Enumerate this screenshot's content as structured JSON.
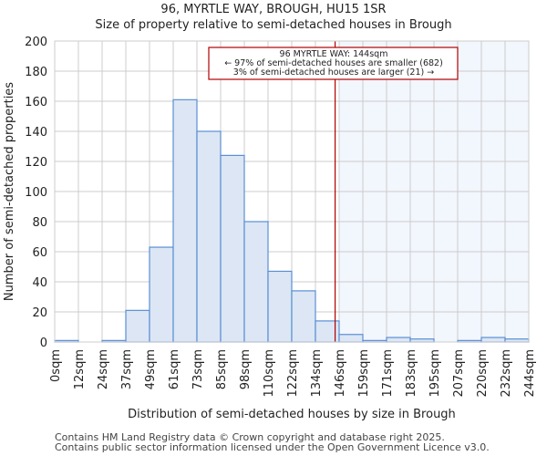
{
  "chart_data": {
    "type": "bar",
    "title": "96, MYRTLE WAY, BROUGH, HU15 1SR",
    "subtitle": "Size of property relative to semi-detached houses in Brough",
    "xlabel": "Distribution of semi-detached houses by size in Brough",
    "ylabel": "Number of semi-detached properties",
    "ylim": [
      0,
      200
    ],
    "yticks": [
      0,
      20,
      40,
      60,
      80,
      100,
      120,
      140,
      160,
      180,
      200
    ],
    "xticks": [
      "0sqm",
      "12sqm",
      "24sqm",
      "37sqm",
      "49sqm",
      "61sqm",
      "73sqm",
      "85sqm",
      "98sqm",
      "110sqm",
      "122sqm",
      "134sqm",
      "146sqm",
      "159sqm",
      "171sqm",
      "183sqm",
      "195sqm",
      "207sqm",
      "220sqm",
      "232sqm",
      "244sqm"
    ],
    "values": [
      1,
      0,
      1,
      21,
      63,
      161,
      140,
      124,
      80,
      47,
      34,
      14,
      5,
      1,
      3,
      2,
      0,
      1,
      3,
      2
    ],
    "marker_value": 144,
    "marker_bin_position": 11.83,
    "grid": true,
    "annotation": [
      "96 MYRTLE WAY: 144sqm",
      "← 97% of semi-detached houses are smaller (682)",
      "3% of semi-detached houses are larger (21) →"
    ],
    "colors": {
      "bar_fill": "#dce6f4",
      "bar_edge": "#5a8fd4",
      "highlight": "#f2f6fd",
      "marker": "#b00000"
    }
  },
  "footer": [
    "Contains HM Land Registry data © Crown copyright and database right 2025.",
    "Contains public sector information licensed under the Open Government Licence v3.0."
  ]
}
